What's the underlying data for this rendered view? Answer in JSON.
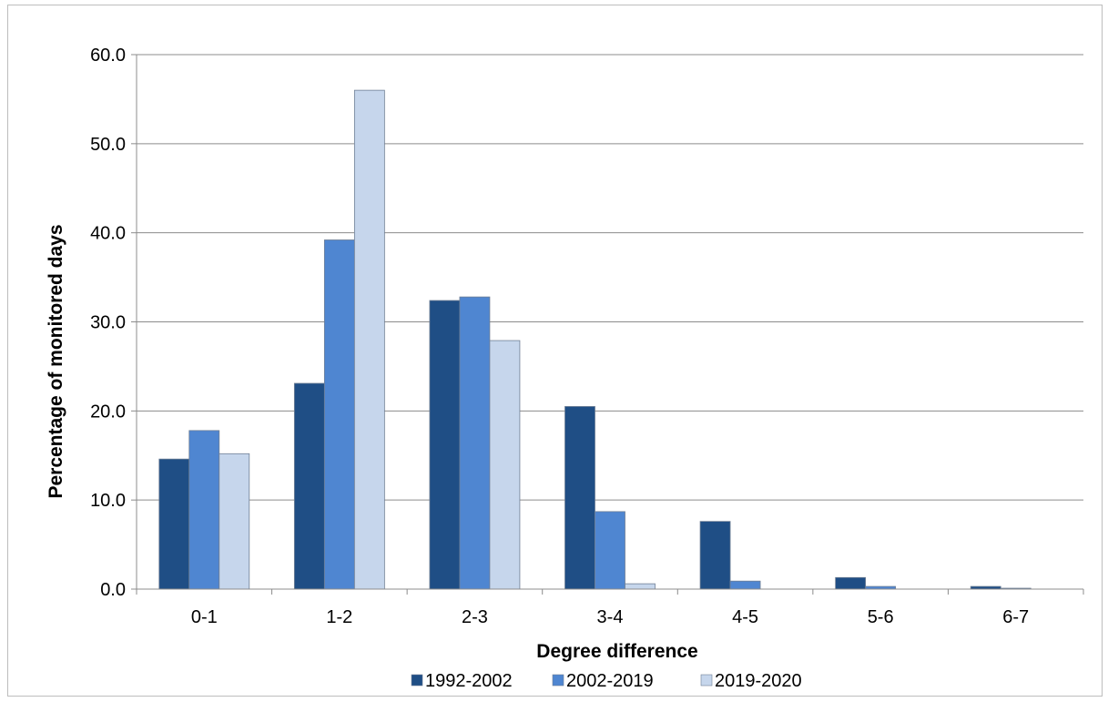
{
  "chart_data": {
    "type": "bar",
    "title": "",
    "xlabel": "Degree difference",
    "ylabel": "Percentage of monitored days",
    "categories": [
      "0-1",
      "1-2",
      "2-3",
      "3-4",
      "4-5",
      "5-6",
      "6-7"
    ],
    "series": [
      {
        "name": "1992-2002",
        "color": "#1f4e85",
        "values": [
          14.6,
          23.1,
          32.4,
          20.5,
          7.6,
          1.3,
          0.3
        ]
      },
      {
        "name": "2002-2019",
        "color": "#4f86d1",
        "values": [
          17.8,
          39.2,
          32.8,
          8.7,
          0.9,
          0.3,
          0.1
        ]
      },
      {
        "name": "2019-2020",
        "color": "#c6d6ec",
        "values": [
          15.2,
          56.0,
          27.9,
          0.6,
          0.0,
          0.0,
          0.0
        ]
      }
    ],
    "ylim": [
      0,
      60
    ],
    "yticks": [
      "0.0",
      "10.0",
      "20.0",
      "30.0",
      "40.0",
      "50.0",
      "60.0"
    ],
    "grid": true,
    "legend_position": "bottom"
  }
}
